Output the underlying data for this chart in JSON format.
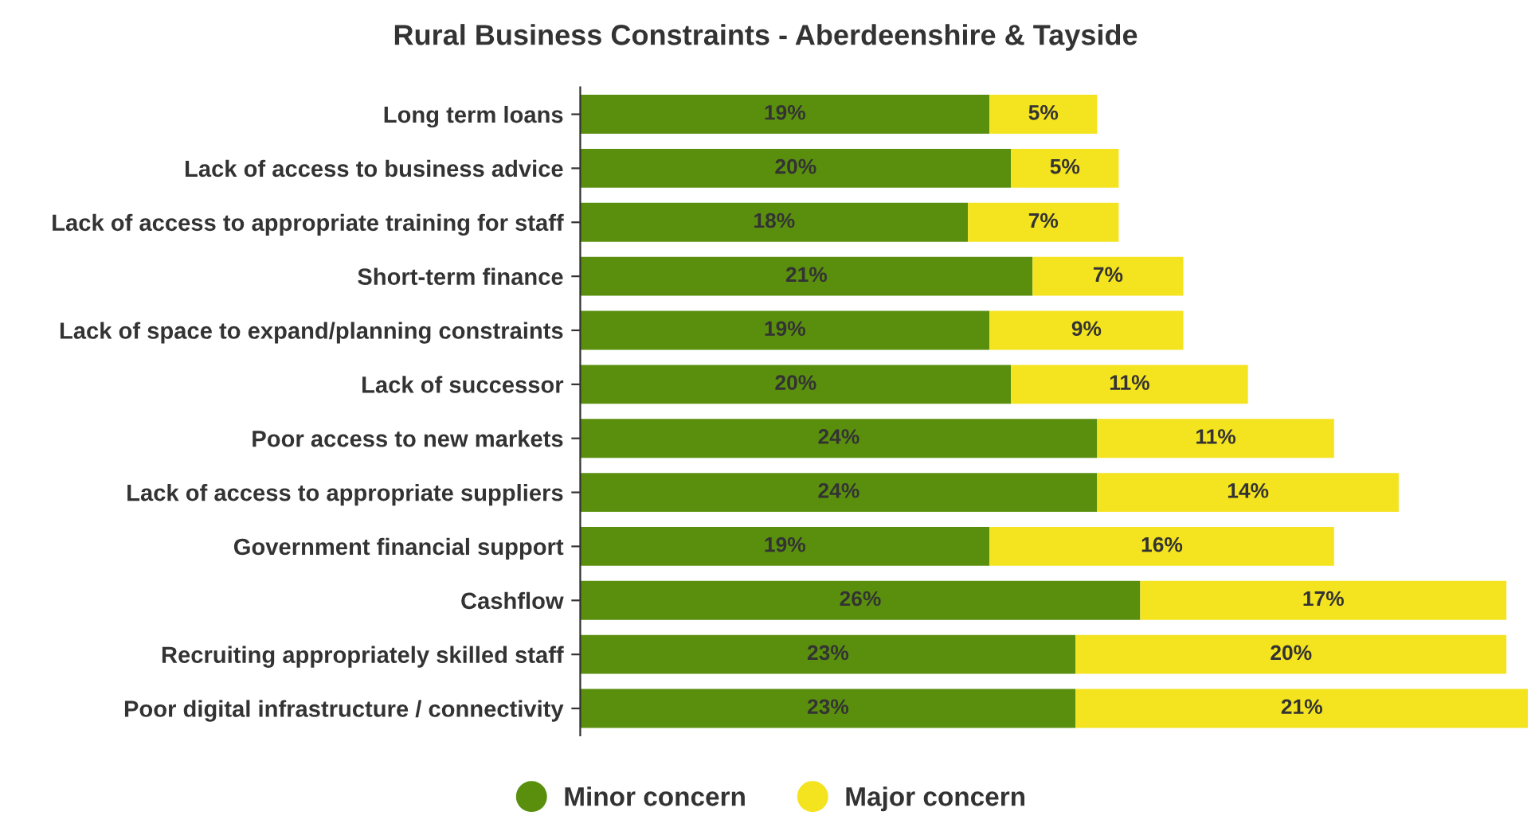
{
  "chart_data": {
    "type": "bar",
    "orientation": "horizontal",
    "stacked": true,
    "title": "Rural Business Constraints - Aberdeenshire & Tayside",
    "categories": [
      "Long term loans",
      "Lack of access to business advice",
      "Lack of access to appropriate training for staff",
      "Short-term finance",
      "Lack of space to expand/planning constraints",
      "Lack of successor",
      "Poor access to new markets",
      "Lack of access to appropriate suppliers",
      "Government financial support",
      "Cashflow",
      "Recruiting appropriately skilled staff",
      "Poor digital infrastructure / connectivity"
    ],
    "series": [
      {
        "name": "Minor concern",
        "color": "#5a8f0e",
        "values": [
          19,
          20,
          18,
          21,
          19,
          20,
          24,
          24,
          19,
          26,
          23,
          23
        ],
        "value_labels": [
          "19%",
          "20%",
          "18%",
          "21%",
          "19%",
          "20%",
          "24%",
          "24%",
          "19%",
          "26%",
          "23%",
          "23%"
        ]
      },
      {
        "name": "Major concern",
        "color": "#f4e31f",
        "values": [
          5,
          5,
          7,
          7,
          9,
          11,
          11,
          14,
          16,
          17,
          20,
          21
        ],
        "value_labels": [
          "5%",
          "5%",
          "7%",
          "7%",
          "9%",
          "11%",
          "11%",
          "14%",
          "16%",
          "17%",
          "20%",
          "21%"
        ]
      }
    ],
    "legend": "bottom",
    "grid": false,
    "marker": "circle"
  }
}
